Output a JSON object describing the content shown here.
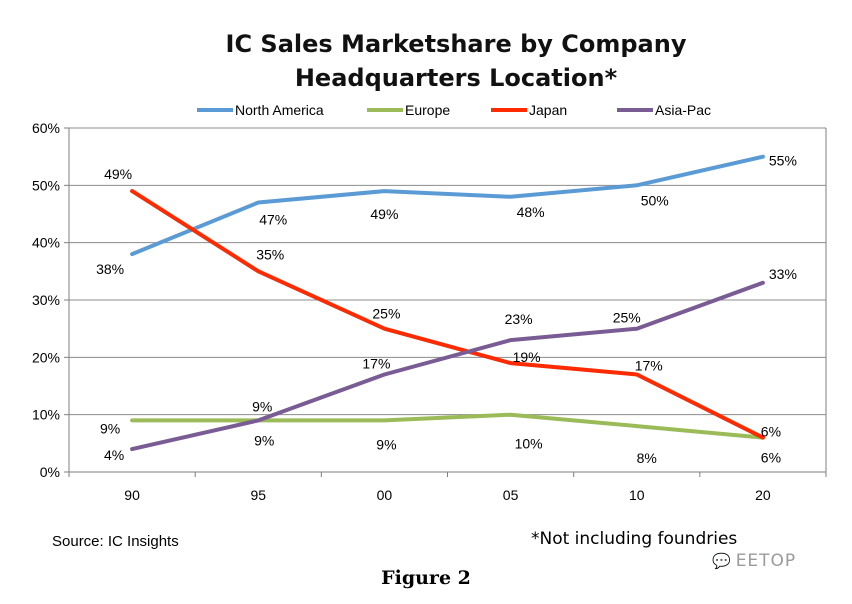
{
  "chart_data": {
    "type": "line",
    "title_line1": "IC Sales Marketshare by Company",
    "title_line2": "Headquarters Location*",
    "categories": [
      "90",
      "95",
      "00",
      "05",
      "10",
      "20"
    ],
    "ylim": [
      0,
      60
    ],
    "yticks": [
      0,
      10,
      20,
      30,
      40,
      50,
      60
    ],
    "ytick_labels": [
      "0%",
      "10%",
      "20%",
      "30%",
      "40%",
      "50%",
      "60%"
    ],
    "grid": true,
    "legend_position": "top",
    "series": [
      {
        "name": "North America",
        "color": "#5b9bd5",
        "values": [
          38,
          47,
          49,
          48,
          50,
          55
        ],
        "labels": [
          "38%",
          "47%",
          "49%",
          "48%",
          "50%",
          "55%"
        ]
      },
      {
        "name": "Europe",
        "color": "#9bbb59",
        "values": [
          9,
          9,
          9,
          10,
          8,
          6
        ],
        "labels": [
          "9%",
          "9%",
          "9%",
          "10%",
          "8%",
          "6%"
        ]
      },
      {
        "name": "Japan",
        "color": "#ff2a00",
        "values": [
          49,
          35,
          25,
          19,
          17,
          6
        ],
        "labels": [
          "49%",
          "35%",
          "25%",
          "19%",
          "17%",
          "6%"
        ]
      },
      {
        "name": "Asia-Pac",
        "color": "#7a5c94",
        "values": [
          4,
          9,
          17,
          23,
          25,
          33
        ],
        "labels": [
          "4%",
          "9%",
          "17%",
          "23%",
          "25%",
          "33%"
        ]
      }
    ]
  },
  "footer": {
    "source": "Source:  IC Insights",
    "note": "*Not including foundries",
    "figure": "Figure 2",
    "watermark": "EETOP"
  }
}
